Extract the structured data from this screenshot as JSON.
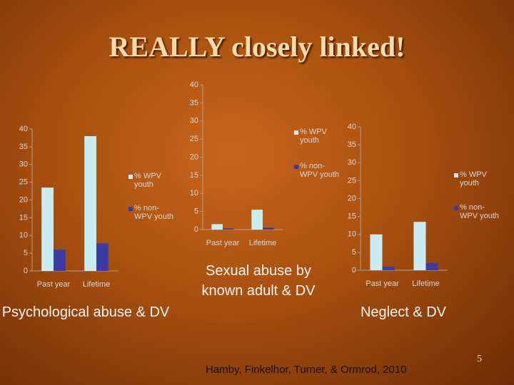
{
  "slide": {
    "title": "REALLY closely linked!",
    "citation": "Hamby, Finkelhor, Turner, & Ormrod, 2010",
    "page_number": "5"
  },
  "chart_data": [
    {
      "type": "bar",
      "caption": "Psychological abuse & DV",
      "categories": [
        "Past year",
        "Lifetime"
      ],
      "series": [
        {
          "name": "% WPV youth",
          "color": "#c9ecf3",
          "values": [
            23.5,
            38
          ]
        },
        {
          "name": "% non-WPV youth",
          "color": "#3b3ba6",
          "values": [
            6,
            7.8
          ]
        }
      ],
      "ylim": [
        0,
        40
      ],
      "yticks": [
        0,
        5,
        10,
        15,
        20,
        25,
        30,
        35,
        40
      ],
      "legend": "right"
    },
    {
      "type": "bar",
      "caption": "Sexual abuse by known adult & DV",
      "categories": [
        "Past year",
        "Lifetime"
      ],
      "series": [
        {
          "name": "% WPV youth",
          "color": "#c9ecf3",
          "values": [
            1.5,
            5.5
          ]
        },
        {
          "name": "% non-WPV youth",
          "color": "#3b3ba6",
          "values": [
            0.3,
            0.5
          ]
        }
      ],
      "ylim": [
        0,
        40
      ],
      "yticks": [
        0,
        5,
        10,
        15,
        20,
        25,
        30,
        35,
        40
      ],
      "legend": "right"
    },
    {
      "type": "bar",
      "caption": "Neglect & DV",
      "categories": [
        "Past year",
        "Lifetime"
      ],
      "series": [
        {
          "name": "% WPV youth",
          "color": "#c9ecf3",
          "values": [
            10,
            13.5
          ]
        },
        {
          "name": "% non-WPV youth",
          "color": "#3b3ba6",
          "values": [
            1,
            2
          ]
        }
      ],
      "ylim": [
        0,
        40
      ],
      "yticks": [
        0,
        5,
        10,
        15,
        20,
        25,
        30,
        35,
        40
      ],
      "legend": "right"
    }
  ]
}
